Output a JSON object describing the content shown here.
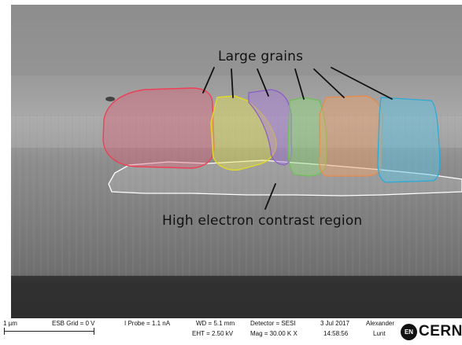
{
  "image": {
    "annotations": {
      "large_grains": "Large grains",
      "high_contrast_region": "High electron contrast region"
    },
    "grain_colors": [
      "#e35a74",
      "#e5e34a",
      "#a77ad6",
      "#8fdb78",
      "#f0a068",
      "#58c6e6"
    ],
    "outline_color": "#ffffff"
  },
  "info_bar": {
    "scale": "1 µm",
    "esb_grid": "ESB Grid =   0 V",
    "i_probe": "I Probe =   1.1 nA",
    "wd": "WD =  5.1 mm",
    "eht": "EHT =  2.50 kV",
    "detector": "Detector = SESI",
    "mag": "Mag =  30.00 K X",
    "date": "3 Jul 2017",
    "time": "14:58:56",
    "user_first": "Alexander",
    "user_last": "Lunt",
    "logo_badge": "EN",
    "logo_text": "CERN"
  }
}
